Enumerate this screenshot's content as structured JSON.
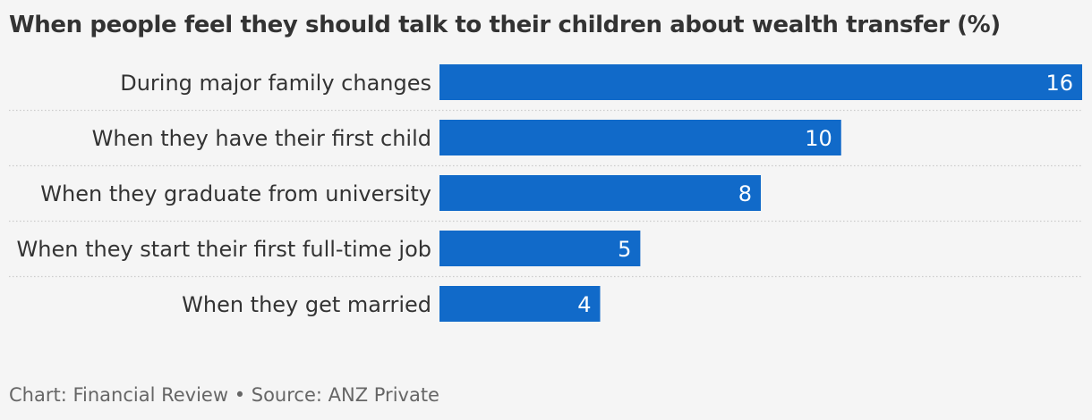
{
  "chart_data": {
    "type": "bar",
    "orientation": "horizontal",
    "title": "When people feel they should talk to their children about wealth transfer (%)",
    "categories": [
      "During major family changes",
      "When they have their first child",
      "When they graduate from university",
      "When they start their first full-time job",
      "When they get married"
    ],
    "values": [
      16,
      10,
      8,
      5,
      4
    ],
    "value_labels": [
      "16",
      "10",
      "8",
      "5",
      "4"
    ],
    "xlim": [
      0,
      16
    ],
    "bar_color": "#116ac9",
    "grid": false,
    "legend": "none"
  },
  "footer": {
    "source": "Chart: Financial Review • Source: ANZ Private"
  },
  "colors": {
    "background": "#f5f5f5",
    "bar": "#116ac9",
    "text": "#333333",
    "muted_text": "#666666",
    "separator": "#cccccc"
  }
}
